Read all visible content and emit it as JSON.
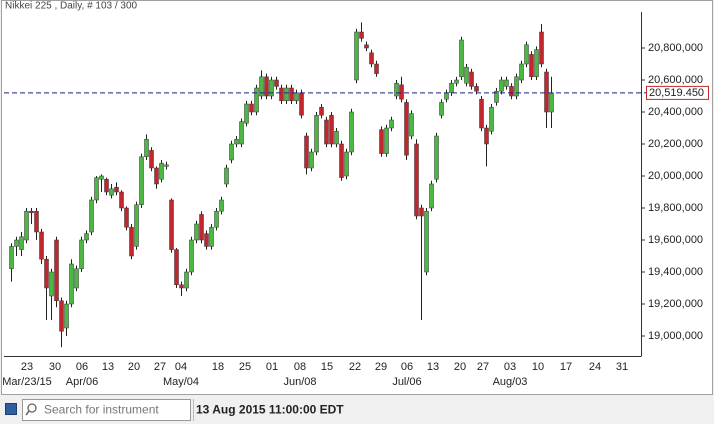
{
  "chart_data": {
    "type": "candlestick",
    "title": "Nikkei 225 , Daily, # 103 / 300",
    "open": [
      19420000,
      19560000,
      19540000,
      19600000,
      19780000,
      19780000,
      19650000,
      19480000,
      19250000,
      19600000,
      19220000,
      19050000,
      19200000,
      19300000,
      19420000,
      19600000,
      19650000,
      19850000,
      19980000,
      19980000,
      19880000,
      19930000,
      19900000,
      19800000,
      19680000,
      19560000,
      19820000,
      20120000,
      20160000,
      20050000,
      19980000,
      20060000,
      19850000,
      19540000,
      19320000,
      19300000,
      19400000,
      19600000,
      19760000,
      19640000,
      19560000,
      19680000,
      19780000,
      19950000,
      20100000,
      20200000,
      20200000,
      20330000,
      20450000,
      20400000,
      20500000,
      20620000,
      20500000,
      20600000,
      20550000,
      20470000,
      20550000,
      20470000,
      20520000,
      20250000,
      20050000,
      20150000,
      20430000,
      20350000,
      20380000,
      20200000,
      20200000,
      20000000,
      20150000,
      20600000,
      20900000,
      20820000,
      20770000,
      20700000,
      20290000,
      20140000,
      20300000,
      20500000,
      20570000,
      20460000,
      20250000,
      20200000,
      19800000,
      19400000,
      19800000,
      19980000,
      20380000,
      20480000,
      20520000,
      20580000,
      20620000,
      20580000,
      20650000,
      20560000,
      20480000,
      20300000,
      20280000,
      20460000,
      20530000,
      20560000,
      20560000,
      20500000,
      20600000,
      20700000,
      20760000,
      20620000,
      20900000,
      20650000,
      20400000
    ],
    "high": [
      19580000,
      19620000,
      19650000,
      19800000,
      19800000,
      19800000,
      19670000,
      19500000,
      19420000,
      19620000,
      19240000,
      19220000,
      19480000,
      19440000,
      19620000,
      19660000,
      19870000,
      20000000,
      20010000,
      19990000,
      19950000,
      19960000,
      19910000,
      19810000,
      19700000,
      19840000,
      20140000,
      20260000,
      20180000,
      20060000,
      20100000,
      20090000,
      19860000,
      19550000,
      19340000,
      19420000,
      19620000,
      19720000,
      19780000,
      19660000,
      19700000,
      19800000,
      19870000,
      20070000,
      20220000,
      20250000,
      20360000,
      20470000,
      20470000,
      20570000,
      20660000,
      20640000,
      20620000,
      20620000,
      20570000,
      20570000,
      20570000,
      20540000,
      20540000,
      20270000,
      20170000,
      20400000,
      20450000,
      20370000,
      20400000,
      20300000,
      20220000,
      20170000,
      20420000,
      20920000,
      20960000,
      20840000,
      20790000,
      20720000,
      20310000,
      20320000,
      20370000,
      20600000,
      20620000,
      20480000,
      20410000,
      20230000,
      19820000,
      19800000,
      19970000,
      20270000,
      20480000,
      20540000,
      20600000,
      20620000,
      20870000,
      20700000,
      20670000,
      20580000,
      20500000,
      20320000,
      20450000,
      20550000,
      20620000,
      20620000,
      20580000,
      20640000,
      20720000,
      20840000,
      20780000,
      20810000,
      20950000,
      20670000,
      20620000
    ],
    "low": [
      19340000,
      19500000,
      19500000,
      19580000,
      19700000,
      19600000,
      19450000,
      19100000,
      19100000,
      19180000,
      18930000,
      19000000,
      19180000,
      19280000,
      19400000,
      19580000,
      19630000,
      19830000,
      19900000,
      19880000,
      19860000,
      19880000,
      19780000,
      19660000,
      19480000,
      19540000,
      19800000,
      20100000,
      20030000,
      19920000,
      19960000,
      20040000,
      19520000,
      19300000,
      19250000,
      19280000,
      19380000,
      19580000,
      19580000,
      19540000,
      19540000,
      19660000,
      19760000,
      19930000,
      20080000,
      20180000,
      20180000,
      20310000,
      20380000,
      20380000,
      20480000,
      20480000,
      20480000,
      20540000,
      20450000,
      20450000,
      20450000,
      20450000,
      20360000,
      20010000,
      20030000,
      20130000,
      20360000,
      20180000,
      20180000,
      20180000,
      19970000,
      19980000,
      20130000,
      20580000,
      20840000,
      20780000,
      20680000,
      20620000,
      20120000,
      20120000,
      20280000,
      20480000,
      20460000,
      20100000,
      20230000,
      19730000,
      19100000,
      19380000,
      19780000,
      19960000,
      20360000,
      20460000,
      20500000,
      20560000,
      20600000,
      20560000,
      20540000,
      20510000,
      20280000,
      20060000,
      20260000,
      20440000,
      20510000,
      20540000,
      20480000,
      20480000,
      20580000,
      20680000,
      20600000,
      20600000,
      20680000,
      20300000,
      20300000
    ],
    "close": [
      19560000,
      19600000,
      19620000,
      19780000,
      19770000,
      19650000,
      19480000,
      19300000,
      19400000,
      19220000,
      19030000,
      19200000,
      19450000,
      19420000,
      19600000,
      19640000,
      19850000,
      19990000,
      20000000,
      19900000,
      19920000,
      19900000,
      19800000,
      19680000,
      19500000,
      19820000,
      20120000,
      20230000,
      20050000,
      19950000,
      20080000,
      20070000,
      19540000,
      19320000,
      19300000,
      19400000,
      19600000,
      19700000,
      19600000,
      19560000,
      19680000,
      19780000,
      19850000,
      20050000,
      20200000,
      20230000,
      20340000,
      20450000,
      20400000,
      20550000,
      20620000,
      20500000,
      20600000,
      20560000,
      20470000,
      20550000,
      20470000,
      20520000,
      20380000,
      20050000,
      20150000,
      20380000,
      20380000,
      20200000,
      20200000,
      20280000,
      19990000,
      20150000,
      20400000,
      20900000,
      20860000,
      20800000,
      20700000,
      20640000,
      20140000,
      20300000,
      20350000,
      20580000,
      20480000,
      20130000,
      20390000,
      19750000,
      19750000,
      19780000,
      19950000,
      20250000,
      20460000,
      20520000,
      20580000,
      20600000,
      20850000,
      20680000,
      20560000,
      20530000,
      20300000,
      20200000,
      20430000,
      20530000,
      20600000,
      20600000,
      20500000,
      20620000,
      20700000,
      20820000,
      20620000,
      20790000,
      20700000,
      20400000,
      20519450
    ],
    "up_color": "#4cb843",
    "down_color": "#c1272d",
    "ylim": [
      18875000,
      21025000
    ],
    "yticks": [
      {
        "value": 19000000,
        "label": "19,000,000"
      },
      {
        "value": 19200000,
        "label": "19,200,000"
      },
      {
        "value": 19400000,
        "label": "19,400,000"
      },
      {
        "value": 19600000,
        "label": "19,600,000"
      },
      {
        "value": 19800000,
        "label": "19,800,000"
      },
      {
        "value": 20000000,
        "label": "20,000,000"
      },
      {
        "value": 20200000,
        "label": "20,200,000"
      },
      {
        "value": 20400000,
        "label": "20,400,000"
      },
      {
        "value": 20600000,
        "label": "20,600,000"
      },
      {
        "value": 20800000,
        "label": "20,800,000"
      }
    ],
    "price_line": {
      "value": 20519450,
      "label": "20,519.450"
    },
    "day_labels": [
      "23",
      "30",
      "06",
      "13",
      "20",
      "27",
      "04",
      "18",
      "25",
      "01",
      "08",
      "15",
      "22",
      "29",
      "06",
      "13",
      "20",
      "27",
      "03",
      "10",
      "17",
      "24",
      "31"
    ],
    "month_labels": [
      "Mar/23/15",
      "Apr/06",
      "May/04",
      "Jun/08",
      "Jul/06",
      "Aug/03"
    ]
  },
  "toolbar": {
    "search_placeholder": "Search for instrument",
    "timestamp": "13 Aug 2015 11:00:00 EDT"
  }
}
